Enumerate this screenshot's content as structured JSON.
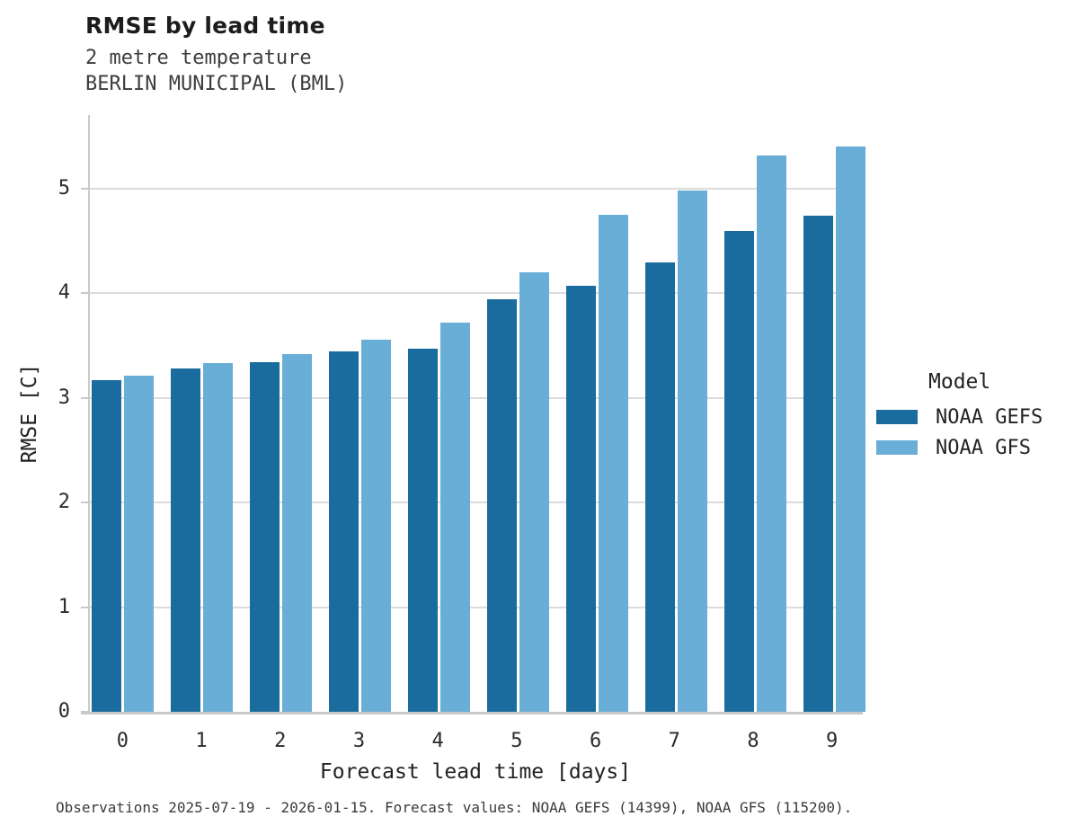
{
  "caption": "Observations 2025-07-19 - 2026-01-15. Forecast values: NOAA GEFS (14399), NOAA GFS (115200).",
  "chart_data": {
    "type": "bar",
    "title": "RMSE by lead time",
    "subtitle": [
      "2 metre temperature",
      "BERLIN MUNICIPAL (BML)"
    ],
    "categories": [
      "0",
      "1",
      "2",
      "3",
      "4",
      "5",
      "6",
      "7",
      "8",
      "9"
    ],
    "series": [
      {
        "name": "NOAA GEFS",
        "color": "#196c9d",
        "values": [
          3.17,
          3.28,
          3.34,
          3.44,
          3.47,
          3.94,
          4.07,
          4.29,
          4.59,
          4.74
        ]
      },
      {
        "name": "NOAA GFS",
        "color": "#69aed7",
        "values": [
          3.21,
          3.33,
          3.42,
          3.55,
          3.72,
          4.2,
          4.75,
          4.98,
          5.31,
          5.4
        ]
      }
    ],
    "xlabel": "Forecast lead time [days]",
    "ylabel": "RMSE [C]",
    "ylim": [
      0,
      5.7
    ],
    "yticks": [
      0,
      1,
      2,
      3,
      4,
      5
    ],
    "legend_title": "Model",
    "legend_position": "right",
    "grid": "horizontal",
    "colors": {
      "gridline": "#dcdcdc",
      "axis_line": "#c9c9c9",
      "text": "#222222"
    }
  }
}
